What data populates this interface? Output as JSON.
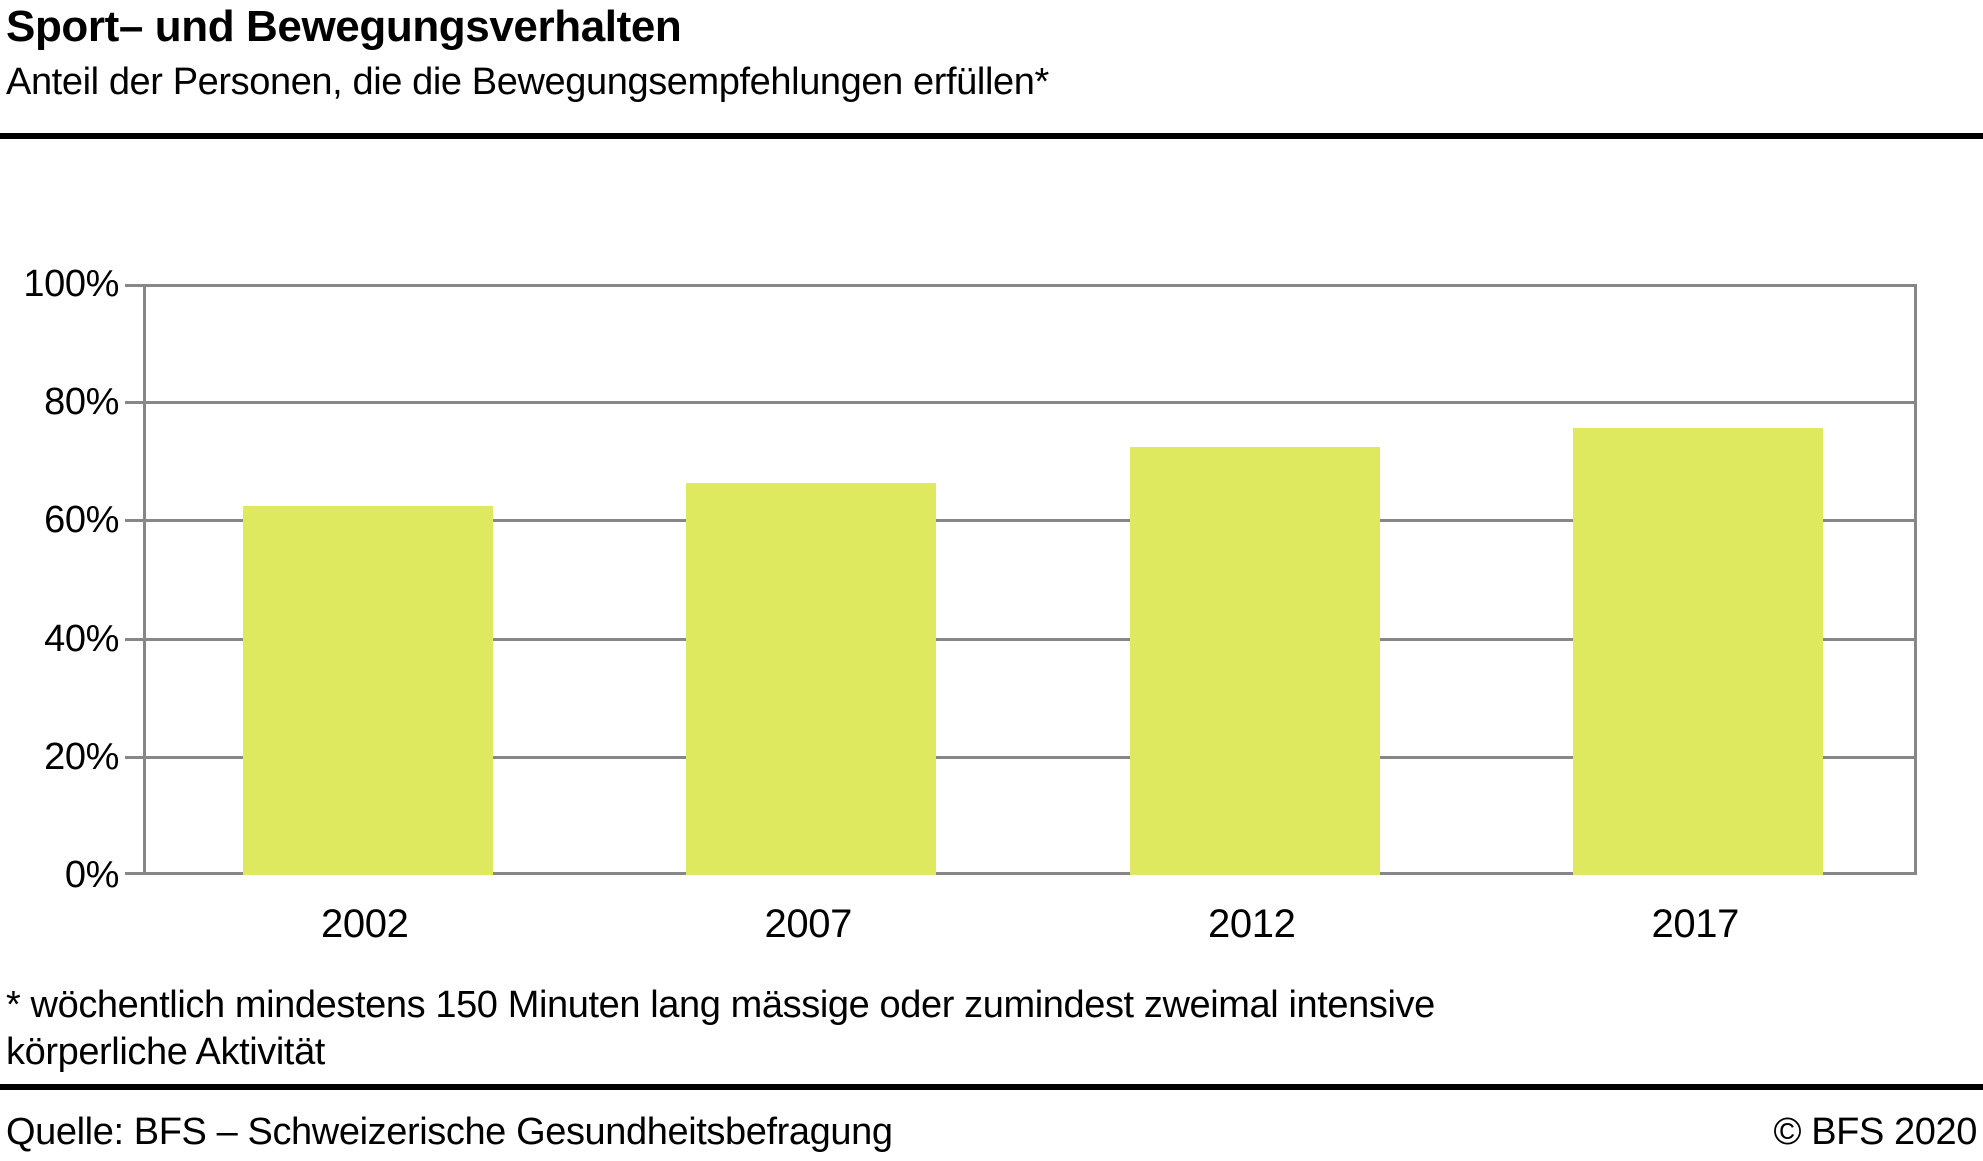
{
  "header": {
    "title": "Sport– und Bewegungsverhalten",
    "subtitle": "Anteil der Personen, die die Bewegungsempfehlungen erfüllen*"
  },
  "chart_data": {
    "type": "bar",
    "title": "Sport– und Bewegungsverhalten",
    "subtitle": "Anteil der Personen, die die Bewegungsempfehlungen erfüllen*",
    "categories": [
      "2002",
      "2007",
      "2012",
      "2017"
    ],
    "values": [
      62.4,
      66.3,
      72.5,
      75.7
    ],
    "unit": "%",
    "xlabel": "",
    "ylabel": "",
    "ylim": [
      0,
      100
    ],
    "yticks": [
      0,
      20,
      40,
      60,
      80,
      100
    ],
    "ytick_labels": [
      "0%",
      "20%",
      "40%",
      "60%",
      "80%",
      "100%"
    ],
    "grid": true,
    "legend_position": "none",
    "bar_color": "#dee95f",
    "axis_color": "#878787"
  },
  "footnote": {
    "lines": [
      "* wöchentlich mindestens 150 Minuten lang mässige oder zumindest zweimal intensive",
      "körperliche Aktivität"
    ]
  },
  "source": {
    "left": "Quelle: BFS – Schweizerische Gesundheitsbefragung",
    "right": "© BFS 2020"
  }
}
